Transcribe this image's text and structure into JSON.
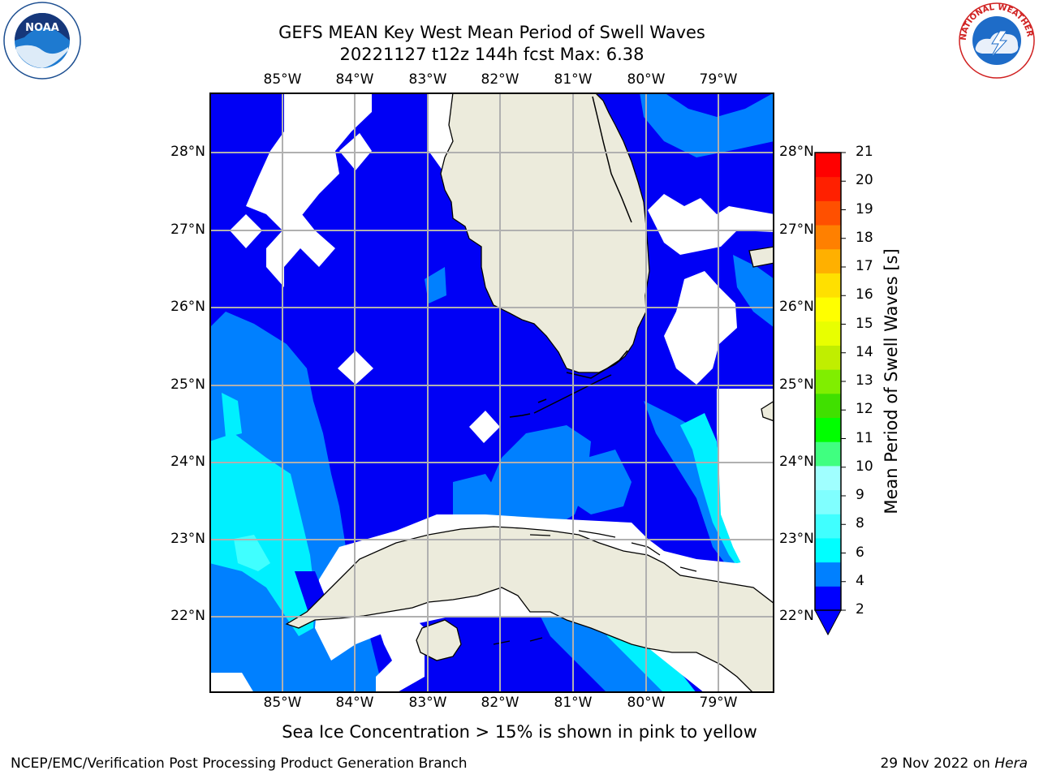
{
  "title": {
    "line1": "GEFS MEAN Key West Mean Period of Swell Waves",
    "line2": "20221127 t12z 144h fcst   Max: 6.38"
  },
  "map": {
    "lon_labels": [
      "85°W",
      "84°W",
      "83°W",
      "82°W",
      "81°W",
      "80°W",
      "79°W"
    ],
    "lat_labels": [
      "28°N",
      "27°N",
      "26°N",
      "25°N",
      "24°N",
      "23°N",
      "22°N"
    ],
    "colors": {
      "land": "#ecebdc",
      "level_2_4": "#0000f5",
      "level_4_6": "#0080ff",
      "level_6_8": "#00f0ff",
      "level_6_8_light": "#40ffff",
      "no_data": "#ffffff",
      "grid": "#b0b0b0"
    }
  },
  "colorbar": {
    "label": "Mean Period of Swell Waves [s]",
    "ticks": [
      "2",
      "4",
      "6",
      "8",
      "9",
      "10",
      "11",
      "12",
      "13",
      "14",
      "15",
      "16",
      "17",
      "18",
      "19",
      "20",
      "21"
    ],
    "colors": [
      "#0000ff",
      "#0080ff",
      "#00ffff",
      "#40ffff",
      "#80ffff",
      "#a0ffff",
      "#40ff80",
      "#00ff00",
      "#40e000",
      "#80ee00",
      "#c0ee00",
      "#e8ff00",
      "#ffff00",
      "#ffe000",
      "#ffb000",
      "#ff8000",
      "#ff5000",
      "#ff2000",
      "#ff0000"
    ]
  },
  "note": "Sea Ice Concentration > 15% is shown in pink to yellow",
  "footer": {
    "left": "NCEP/EMC/Verification Post Processing Product Generation Branch",
    "date": "29 Nov 2022 on ",
    "host": "Hera"
  },
  "logos": {
    "noaa": "NOAA",
    "nws": "NATIONAL WEATHER SERVICE"
  }
}
